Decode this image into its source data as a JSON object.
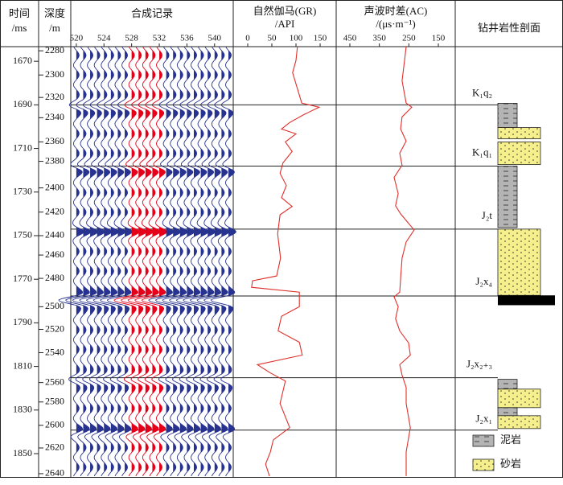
{
  "chart_data": {
    "type": "well-log",
    "headers": {
      "time": [
        "时间",
        "/ms"
      ],
      "depth": [
        "深度",
        "/m"
      ],
      "synthetic": [
        "合成记录"
      ],
      "gr": [
        "自然伽马(GR)",
        "/API"
      ],
      "ac": [
        "声波时差(AC)",
        "/(μs·m⁻¹)"
      ],
      "lithology": [
        "钻井岩性剖面"
      ]
    },
    "ylim": [
      1663.3,
      1860.7
    ],
    "yticks": [
      1670,
      1690,
      1710,
      1730,
      1750,
      1770,
      1790,
      1810,
      1830,
      1850
    ],
    "depth_ticks": [
      2280,
      2300,
      2320,
      2340,
      2360,
      2380,
      2400,
      2420,
      2440,
      2460,
      2480,
      2500,
      2520,
      2540,
      2560,
      2580,
      2600,
      2620,
      2640
    ],
    "depth_tick_times": [
      1665.2,
      1676.3,
      1686.6,
      1695.9,
      1707.0,
      1715.9,
      1728.1,
      1739.2,
      1750.0,
      1758.9,
      1769.6,
      1782.6,
      1793.0,
      1803.7,
      1817.4,
      1826.3,
      1837.0,
      1847.4,
      1859.2
    ],
    "synthetic": {
      "xlim": [
        519.2,
        542.7
      ],
      "xticks": [
        520,
        524,
        528,
        532,
        536,
        540
      ],
      "color": "#27338f",
      "highlight": [
        528,
        532
      ],
      "highlight_color": "#e5001a"
    },
    "horizons": [
      1690,
      1718.1,
      1747,
      1777.7,
      1815.2,
      1839.2
    ],
    "gr": {
      "xlim": [
        -30,
        183.3
      ],
      "xticks": [
        0,
        50,
        100,
        150
      ],
      "color": "#e0302c",
      "t": [
        1663.3,
        1669.6,
        1675.2,
        1682.6,
        1689.2,
        1691.1,
        1694.4,
        1698.1,
        1701.1,
        1703.3,
        1707.0,
        1711.4,
        1716.6,
        1721.4,
        1727.0,
        1732.6,
        1736.6,
        1740.4,
        1749.2,
        1760.3,
        1768.5,
        1770.7,
        1773.7,
        1775.9,
        1782.6,
        1787.0,
        1793.7,
        1798.9,
        1804.8,
        1809.2,
        1813.0,
        1816.7,
        1827.0,
        1838.1,
        1843.7,
        1849.2,
        1854.8,
        1860.3
      ],
      "values": [
        103,
        100,
        93,
        103,
        112,
        148,
        117,
        87,
        70,
        100,
        78,
        92,
        73,
        67,
        80,
        70,
        92,
        67,
        62,
        68,
        60,
        10,
        8,
        107,
        107,
        70,
        63,
        107,
        113,
        20,
        47,
        78,
        67,
        87,
        53,
        47,
        37,
        45
      ]
    },
    "ac": {
      "xlim": [
        496.4,
        92.7
      ],
      "xticks": [
        450,
        350,
        250,
        150
      ],
      "color": "#e0302c",
      "t": [
        1663.3,
        1669.6,
        1678.9,
        1689.2,
        1691.1,
        1695.5,
        1701.1,
        1706.6,
        1712.2,
        1717.7,
        1723.3,
        1730.7,
        1736.3,
        1740.0,
        1747.4,
        1752.9,
        1760.3,
        1769.6,
        1775.9,
        1778.1,
        1782.6,
        1788.1,
        1793.7,
        1799.2,
        1804.8,
        1809.2,
        1814.0,
        1819.6,
        1827.0,
        1838.1,
        1849.2,
        1860.3
      ],
      "values": [
        259,
        264.5,
        273,
        259,
        240,
        273,
        278,
        259,
        281,
        273,
        300,
        286,
        295,
        278,
        232,
        259,
        273,
        278,
        281,
        300,
        286,
        295,
        281,
        251,
        245,
        281,
        273,
        259,
        259,
        245,
        259,
        259
      ]
    },
    "formations": [
      {
        "label": "K₁q₂",
        "t": 1684.8
      },
      {
        "label": "K₁q₁",
        "t": 1712.2
      },
      {
        "label": "J₂t",
        "t": 1741.1
      },
      {
        "label": "J₂x₄",
        "t": 1771.4
      },
      {
        "label": "J₂x₂₊₃",
        "t": 1809.2
      },
      {
        "label": "J₂x₁",
        "t": 1834.4
      }
    ],
    "lithology": [
      {
        "legend": 0,
        "top": 1689.3,
        "bottom": 1700.4
      },
      {
        "legend": 1,
        "top": 1700.4,
        "bottom": 1705.6
      },
      {
        "legend": 1,
        "top": 1707.0,
        "bottom": 1717.4
      },
      {
        "legend": 0,
        "top": 1718.1,
        "bottom": 1746.3
      },
      {
        "legend": 1,
        "top": 1747.0,
        "bottom": 1777.4
      },
      {
        "legend": 0,
        "top": 1815.9,
        "bottom": 1820.4
      },
      {
        "legend": 1,
        "top": 1820.4,
        "bottom": 1828.9
      },
      {
        "legend": 0,
        "top": 1828.9,
        "bottom": 1832.6
      },
      {
        "legend": 1,
        "top": 1832.6,
        "bottom": 1838.5
      }
    ],
    "coal": {
      "top": 1777.4,
      "bottom": 1781.9,
      "color": "#000000"
    },
    "legend": [
      {
        "name": "泥岩",
        "color": "#b4b4b4"
      },
      {
        "name": "砂岩",
        "color": "#f6f08c"
      }
    ]
  }
}
